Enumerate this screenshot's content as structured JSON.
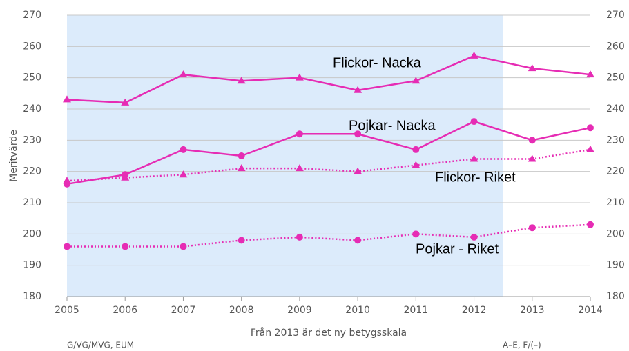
{
  "chart_data": {
    "type": "line",
    "y_label": "Meritvärde",
    "x_label": "Från 2013 är det ny betygsskala",
    "notes": [
      "G/VG/MVG, EUM",
      "A–E, F/(–)"
    ],
    "x": [
      2005,
      2006,
      2007,
      2008,
      2009,
      2010,
      2011,
      2012,
      2013,
      2014
    ],
    "xlim": [
      2005,
      2014
    ],
    "xticks": [
      2005,
      2006,
      2007,
      2008,
      2009,
      2010,
      2011,
      2012,
      2013,
      2014
    ],
    "ylim": [
      180,
      270
    ],
    "yticks": [
      180,
      190,
      200,
      210,
      220,
      230,
      240,
      250,
      260,
      270
    ],
    "grid": true,
    "band": {
      "from": 2005,
      "to": 2012.5,
      "color": "#dcebfb"
    },
    "series": [
      {
        "name": "Flickor- Nacka",
        "color": "#e62cb4",
        "marker": "triangle",
        "dash": "solid",
        "values": [
          243,
          242,
          251,
          249,
          250,
          246,
          249,
          257,
          253,
          251
        ]
      },
      {
        "name": "Pojkar- Nacka",
        "color": "#e62cb4",
        "marker": "circle",
        "dash": "solid",
        "values": [
          216,
          219,
          227,
          225,
          232,
          232,
          227,
          236,
          230,
          234
        ]
      },
      {
        "name": "Flickor- Riket",
        "color": "#e62cb4",
        "marker": "triangle",
        "dash": "dotted",
        "values": [
          217,
          218,
          219,
          221,
          221,
          220,
          222,
          224,
          224,
          227
        ]
      },
      {
        "name": "Pojkar - Riket",
        "color": "#e62cb4",
        "marker": "circle",
        "dash": "dotted",
        "values": [
          196,
          196,
          196,
          198,
          199,
          198,
          200,
          199,
          202,
          203
        ]
      }
    ]
  }
}
